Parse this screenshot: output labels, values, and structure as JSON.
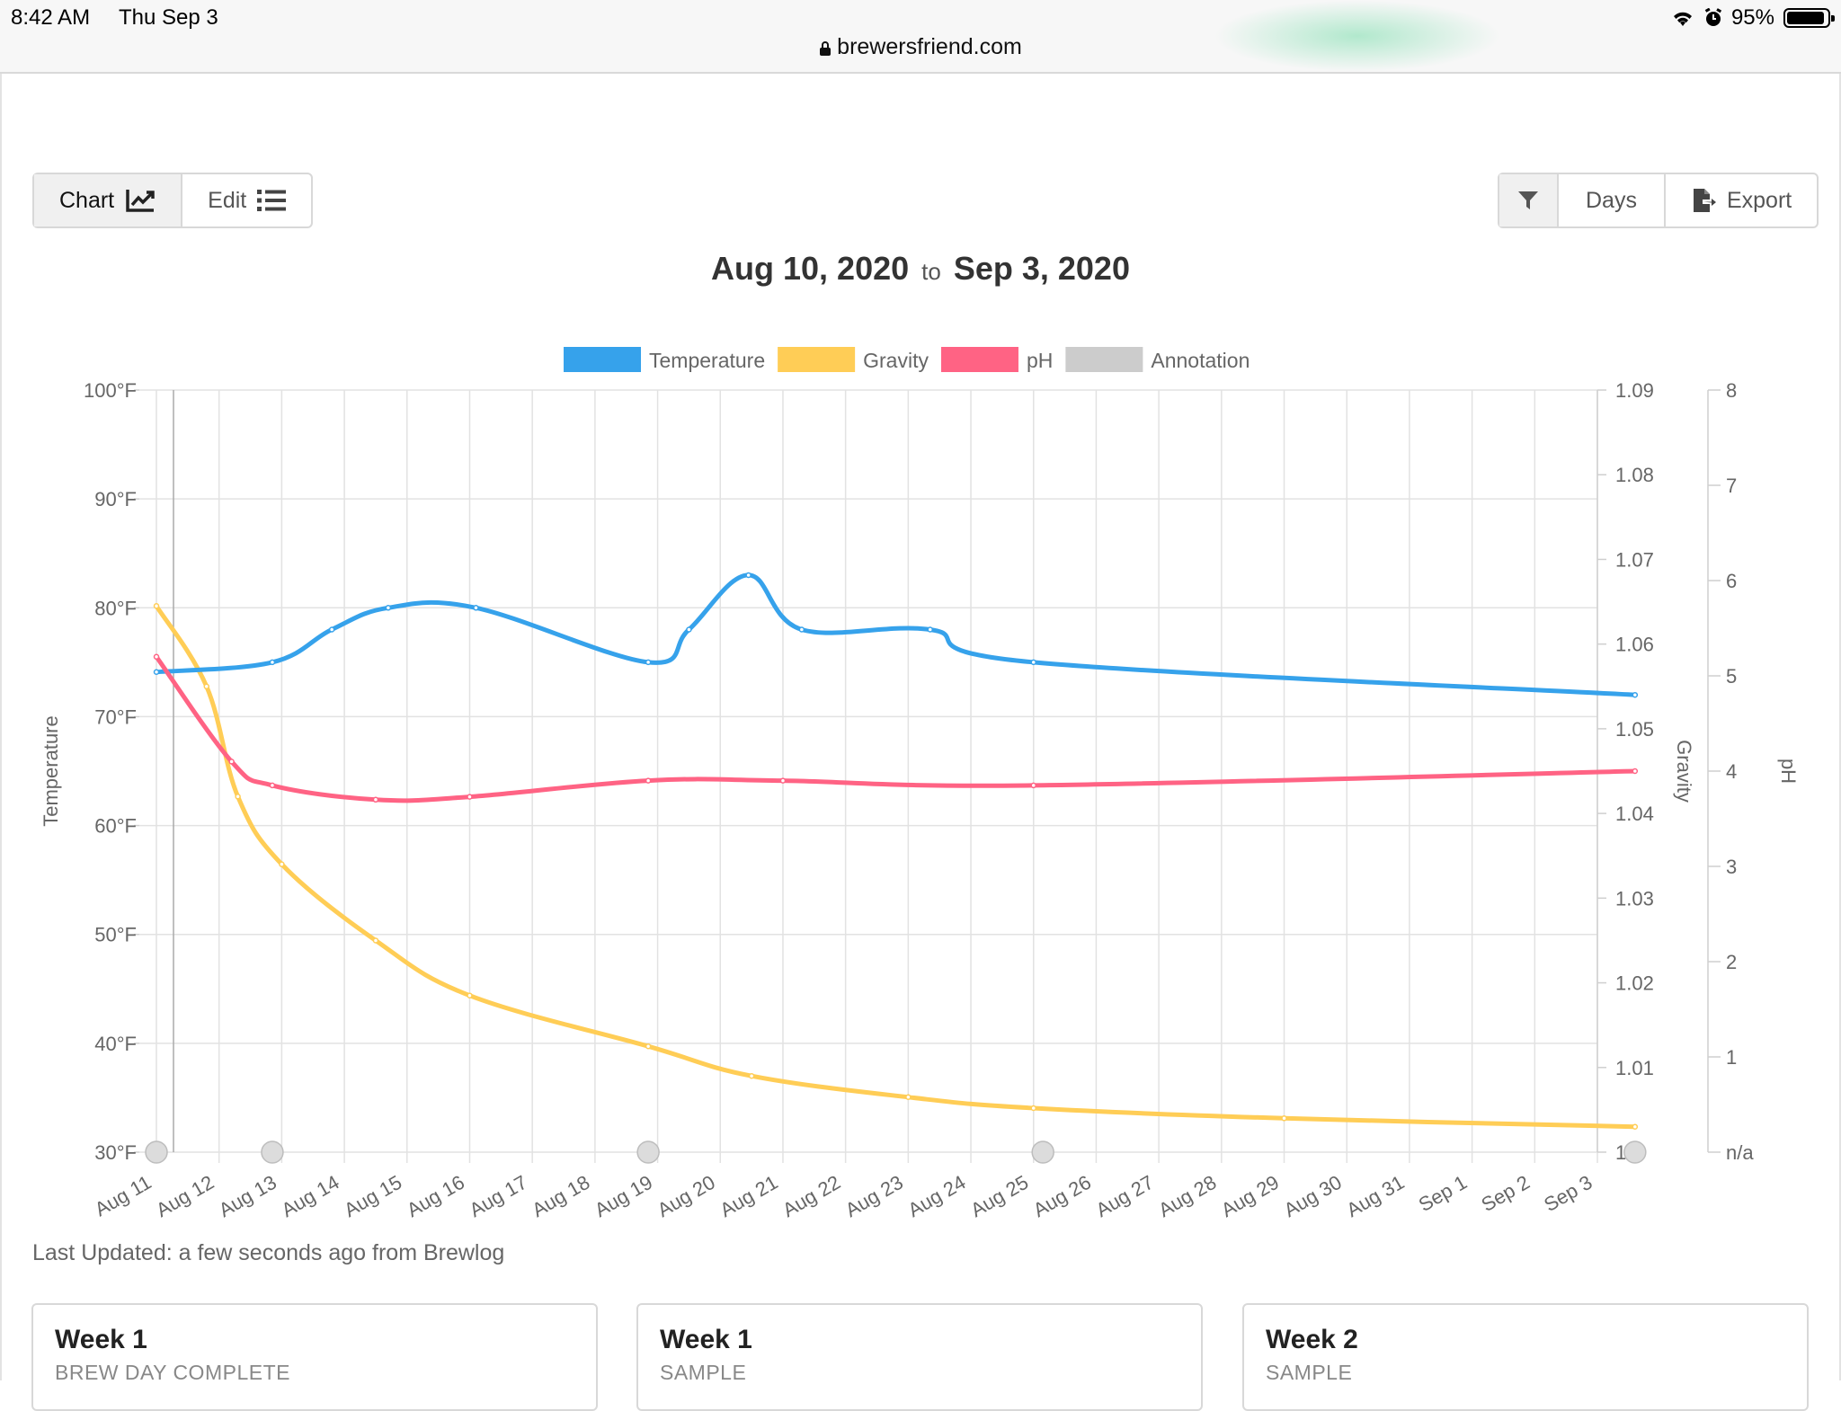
{
  "status_bar": {
    "time": "8:42 AM",
    "date": "Thu Sep 3",
    "battery": "95%",
    "url": "brewersfriend.com"
  },
  "toolbar": {
    "chart_label": "Chart",
    "edit_label": "Edit",
    "days_label": "Days",
    "export_label": "Export"
  },
  "date_range": {
    "start": "Aug 10, 2020",
    "connector": "to",
    "end": "Sep 3, 2020"
  },
  "chart_data": {
    "type": "line",
    "x": [
      "Aug 11",
      "Aug 12",
      "Aug 13",
      "Aug 14",
      "Aug 15",
      "Aug 16",
      "Aug 17",
      "Aug 18",
      "Aug 19",
      "Aug 20",
      "Aug 21",
      "Aug 22",
      "Aug 23",
      "Aug 24",
      "Aug 25",
      "Aug 26",
      "Aug 27",
      "Aug 28",
      "Aug 29",
      "Aug 30",
      "Aug 31",
      "Sep 1",
      "Sep 2",
      "Sep 3"
    ],
    "grid": true,
    "legend_position": "top",
    "axes": {
      "temperature": {
        "label": "Temperature",
        "side": "left",
        "range": [
          30,
          100
        ],
        "ticks": [
          "30°F",
          "40°F",
          "50°F",
          "60°F",
          "70°F",
          "80°F",
          "90°F",
          "100°F"
        ]
      },
      "gravity": {
        "label": "Gravity",
        "side": "right",
        "range": [
          1.0,
          1.09
        ],
        "ticks": [
          "1",
          "1.01",
          "1.02",
          "1.03",
          "1.04",
          "1.05",
          "1.06",
          "1.07",
          "1.08",
          "1.09"
        ]
      },
      "ph": {
        "label": "pH",
        "side": "right",
        "range": [
          0,
          8
        ],
        "ticks": [
          "n/a",
          "1",
          "2",
          "3",
          "4",
          "5",
          "6",
          "7",
          "8"
        ]
      }
    },
    "series": [
      {
        "name": "Temperature",
        "color": "#36a2eb",
        "axis": "temperature",
        "points": [
          [
            0,
            74.1
          ],
          [
            1.85,
            75.0
          ],
          [
            2.8,
            78.0
          ],
          [
            3.7,
            80.0
          ],
          [
            5.1,
            80.0
          ],
          [
            7.85,
            75.0
          ],
          [
            8.5,
            78.0
          ],
          [
            9.45,
            83.0
          ],
          [
            10.3,
            78.0
          ],
          [
            12.35,
            78.0
          ],
          [
            14.0,
            75.0
          ],
          [
            23.6,
            72.0
          ]
        ]
      },
      {
        "name": "Gravity",
        "color": "#ffcd56",
        "axis": "gravity",
        "points": [
          [
            0,
            1.0645
          ],
          [
            0.8,
            1.055
          ],
          [
            1.3,
            1.042
          ],
          [
            2.0,
            1.034
          ],
          [
            3.5,
            1.025
          ],
          [
            5.0,
            1.0185
          ],
          [
            7.85,
            1.0125
          ],
          [
            9.5,
            1.009
          ],
          [
            12.0,
            1.0065
          ],
          [
            14.0,
            1.0052
          ],
          [
            18.0,
            1.004
          ],
          [
            23.6,
            1.003
          ]
        ]
      },
      {
        "name": "pH",
        "color": "#ff6384",
        "axis": "ph",
        "points": [
          [
            0,
            5.2
          ],
          [
            1.2,
            4.1
          ],
          [
            1.85,
            3.85
          ],
          [
            3.5,
            3.7
          ],
          [
            5.0,
            3.73
          ],
          [
            7.85,
            3.9
          ],
          [
            10.0,
            3.9
          ],
          [
            14.0,
            3.85
          ],
          [
            23.6,
            4.0
          ]
        ]
      },
      {
        "name": "Annotation",
        "color": "#cccccc",
        "axis": "temperature",
        "points": [
          [
            0,
            30
          ],
          [
            1.85,
            30
          ],
          [
            7.85,
            30
          ],
          [
            14.15,
            30
          ],
          [
            23.6,
            30
          ]
        ]
      }
    ]
  },
  "last_updated": "Last Updated: a few seconds ago from Brewlog",
  "cards": [
    {
      "title": "Week 1",
      "subtitle": "BREW DAY COMPLETE"
    },
    {
      "title": "Week 1",
      "subtitle": "SAMPLE"
    },
    {
      "title": "Week 2",
      "subtitle": "SAMPLE"
    }
  ]
}
